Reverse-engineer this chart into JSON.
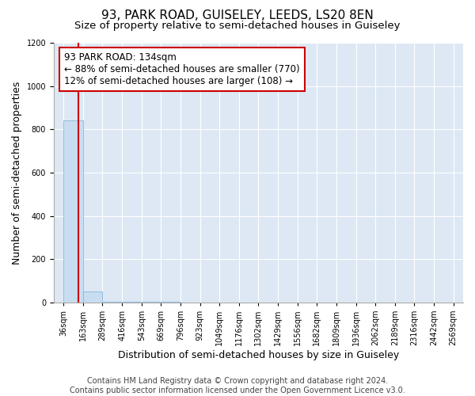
{
  "title": "93, PARK ROAD, GUISELEY, LEEDS, LS20 8EN",
  "subtitle": "Size of property relative to semi-detached houses in Guiseley",
  "xlabel": "Distribution of semi-detached houses by size in Guiseley",
  "ylabel": "Number of semi-detached properties",
  "footnote": "Contains HM Land Registry data © Crown copyright and database right 2024.\nContains public sector information licensed under the Open Government Licence v3.0.",
  "property_size": 134,
  "annotation_text": "93 PARK ROAD: 134sqm\n← 88% of semi-detached houses are smaller (770)\n12% of semi-detached houses are larger (108) →",
  "bar_edges": [
    36,
    163,
    289,
    416,
    543,
    669,
    796,
    923,
    1049,
    1176,
    1302,
    1429,
    1556,
    1682,
    1809,
    1936,
    2062,
    2189,
    2316,
    2442,
    2569
  ],
  "bar_heights": [
    840,
    50,
    5,
    3,
    2,
    2,
    1,
    1,
    0,
    0,
    0,
    0,
    0,
    0,
    0,
    0,
    0,
    0,
    0,
    0
  ],
  "bar_color": "#c8ddf0",
  "bar_edgecolor": "#7aafd4",
  "redline_color": "#cc0000",
  "annotation_box_edgecolor": "#cc0000",
  "background_color": "#dde8f4",
  "grid_color": "#ffffff",
  "ylim": [
    0,
    1200
  ],
  "title_fontsize": 11,
  "subtitle_fontsize": 9.5,
  "axis_label_fontsize": 9,
  "tick_fontsize": 7,
  "annotation_fontsize": 8.5,
  "footnote_fontsize": 7
}
